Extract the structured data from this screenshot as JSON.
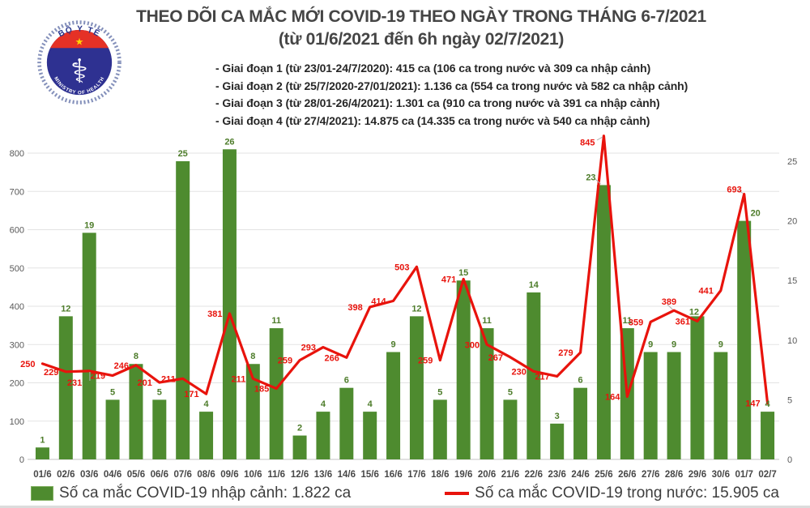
{
  "header": {
    "title_line1": "THEO DÕI CA MẮC MỚI COVID-19 THEO NGÀY TRONG THÁNG 6-7/2021",
    "title_line2": "(từ 01/6/2021 đến 6h ngày 02/7/2021)",
    "bullets": [
      "- Giai đoạn 1 (từ 23/01-24/7/2020): 415 ca (106 ca trong nước và 309 ca nhập cảnh)",
      "- Giai đoạn 2 (từ 25/7/2020-27/01/2021): 1.136 ca (554 ca trong nước và 582 ca nhập cảnh)",
      "- Giai đoạn 3 (từ 28/01-26/4/2021): 1.301 ca (910 ca trong nước và 391 ca nhập cảnh)",
      "- Giai đoạn 4 (từ 27/4/2021): 14.875 ca (14.335 ca trong nước và 540 ca nhập cảnh)"
    ]
  },
  "logo": {
    "top_text": "BỘ Y TẾ",
    "bottom_text": "MINISTRY OF HEALTH",
    "caduceus_icon": "⚕",
    "star_icon": "★"
  },
  "legend": {
    "imported_label": "Số ca mắc COVID-19 nhập cảnh: 1.822 ca",
    "domestic_label": "Số ca mắc COVID-19 trong nước: 15.905 ca"
  },
  "colors": {
    "green": "#4e8b2f",
    "green_label": "#4d7c2a",
    "red": "#e8130c",
    "grid": "#e3e3e3",
    "axis_line": "#cfcfcf",
    "axis_text": "#595959",
    "x_label_text": "#474747",
    "leader": "#adadad",
    "logo_blue": "#2e3191",
    "logo_red": "#e53126",
    "logo_ring": "#8591bb",
    "logo_star": "#ffd400"
  },
  "chart_data": {
    "type": "bar+line combo, dual axis",
    "title": "THEO DÕI CA MẮC MỚI COVID-19 THEO NGÀY TRONG THÁNG 6-7/2021 (từ 01/6/2021 đến 6h ngày 02/7/2021)",
    "categories": [
      "01/6",
      "02/6",
      "03/6",
      "04/6",
      "05/6",
      "06/6",
      "07/6",
      "08/6",
      "09/6",
      "10/6",
      "11/6",
      "12/6",
      "13/6",
      "14/6",
      "15/6",
      "16/6",
      "17/6",
      "18/6",
      "19/6",
      "20/6",
      "21/6",
      "22/6",
      "23/6",
      "24/6",
      "25/6",
      "26/6",
      "27/6",
      "28/6",
      "29/6",
      "30/6",
      "01/7",
      "02/7"
    ],
    "series": [
      {
        "name": "Số ca mắc COVID-19 nhập cảnh: 1.822 ca",
        "type": "bar",
        "axis": "right",
        "color": "#4e8b2f",
        "values": [
          1,
          12,
          19,
          5,
          8,
          5,
          25,
          4,
          26,
          8,
          11,
          2,
          4,
          6,
          4,
          9,
          12,
          5,
          15,
          11,
          5,
          14,
          3,
          6,
          23,
          11,
          9,
          9,
          12,
          9,
          20,
          4
        ]
      },
      {
        "name": "Số ca mắc COVID-19 trong nước: 15.905 ca",
        "type": "line",
        "axis": "left",
        "color": "#e8130c",
        "values": [
          250,
          229,
          231,
          219,
          246,
          201,
          211,
          171,
          381,
          211,
          185,
          259,
          293,
          266,
          398,
          414,
          503,
          259,
          471,
          300,
          267,
          230,
          217,
          279,
          845,
          164,
          359,
          389,
          361,
          441,
          693,
          147
        ]
      }
    ],
    "left_axis": {
      "min": 0,
      "max": 800,
      "step": 100
    },
    "right_axis": {
      "min": 0,
      "max": 25,
      "step": 5
    },
    "grid": true,
    "data_labels": true,
    "legend_position": "bottom"
  }
}
